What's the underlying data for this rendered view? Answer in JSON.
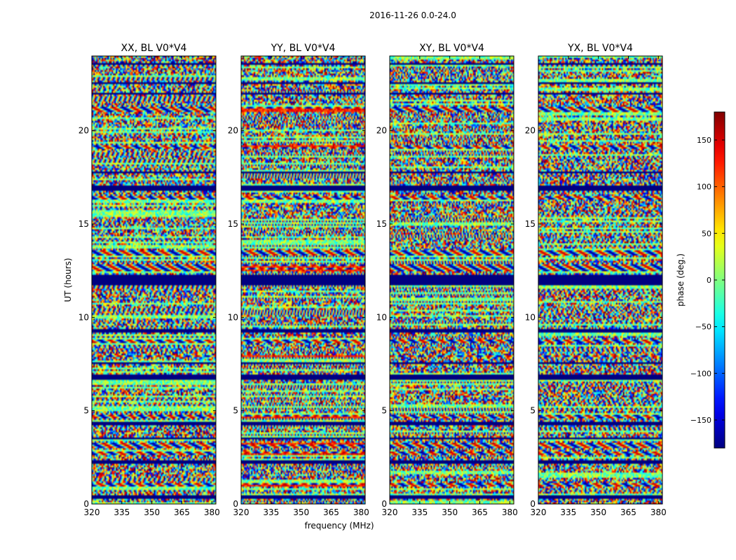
{
  "chart_data": {
    "type": "heatmap",
    "suptitle": "2016-11-26 0.0-24.0",
    "xlabel": "frequency (MHz)",
    "ylabel": "UT (hours)",
    "xlim": [
      320,
      382
    ],
    "ylim": [
      0,
      24
    ],
    "xticks": [
      320,
      335,
      350,
      365,
      380
    ],
    "yticks": [
      0,
      5,
      10,
      15,
      20
    ],
    "colormap": "jet",
    "panels": [
      {
        "title": "XX, BL V0*V4",
        "stokes": "XX"
      },
      {
        "title": "YY, BL V0*V4",
        "stokes": "YY"
      },
      {
        "title": "XY, BL V0*V4",
        "stokes": "XY"
      },
      {
        "title": "YX, BL V0*V4",
        "stokes": "YX"
      }
    ],
    "colorbar": {
      "label": "phase (deg.)",
      "range": [
        -180,
        180
      ],
      "ticks": [
        -150,
        -100,
        -50,
        0,
        50,
        100,
        150
      ]
    },
    "flagged_hours": [
      [
        0.3,
        0.45
      ],
      [
        2.2,
        2.35
      ],
      [
        3.5,
        3.6
      ],
      [
        4.2,
        4.4
      ],
      [
        6.7,
        6.9
      ],
      [
        7.5,
        7.6
      ],
      [
        9.2,
        9.35
      ],
      [
        11.7,
        12.3
      ],
      [
        16.8,
        17.1
      ],
      [
        17.7,
        17.8
      ],
      [
        21.9,
        22.0
      ],
      [
        22.5,
        22.6
      ],
      [
        23.5,
        23.6
      ]
    ],
    "coherent_bands": [
      [
        0.9,
        1.1
      ],
      [
        2.6,
        2.8
      ],
      [
        3.0,
        3.3
      ],
      [
        4.6,
        4.8
      ],
      [
        7.9,
        8.0
      ],
      [
        8.6,
        8.8
      ],
      [
        12.5,
        12.8
      ],
      [
        13.3,
        13.6
      ],
      [
        16.3,
        16.5
      ],
      [
        19.0,
        19.2
      ],
      [
        21.0,
        21.3
      ],
      [
        21.9,
        22.0
      ]
    ]
  }
}
